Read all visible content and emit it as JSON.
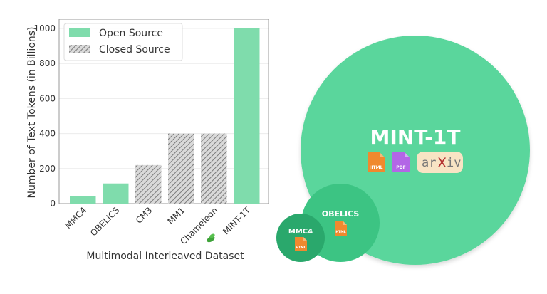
{
  "chart_data": [
    {
      "type": "bar",
      "title": "",
      "xlabel": "Multimodal Interleaved Dataset",
      "ylabel": "Number of Text Tokens (in Billions)",
      "ylim": [
        0,
        1000
      ],
      "yticks": [
        0,
        200,
        400,
        600,
        800,
        1000
      ],
      "grid": true,
      "legend_position": "upper left",
      "categories": [
        "MMC4",
        "OBELICS",
        "CM3",
        "MM1",
        "Chameleon",
        "MINT-1T"
      ],
      "values": [
        43,
        115,
        220,
        400,
        400,
        1000
      ],
      "source_type": [
        "Open Source",
        "Open Source",
        "Closed Source",
        "Closed Source",
        "Closed Source",
        "Open Source"
      ],
      "legend": [
        {
          "label": "Open Source",
          "style": "solid",
          "color": "#7fdcac"
        },
        {
          "label": "Closed Source",
          "style": "hatched",
          "color": "#999999"
        }
      ],
      "annotations": [
        "leaf icon next to MINT-1T tick label"
      ]
    },
    {
      "type": "bubble",
      "title": "",
      "bubbles": [
        {
          "label": "MINT-1T",
          "relative_size": "largest",
          "sources": [
            "HTML",
            "PDF",
            "arXiv"
          ],
          "color": "#5ad69c"
        },
        {
          "label": "OBELICS",
          "relative_size": "medium",
          "sources": [
            "HTML"
          ],
          "color": "#3cc483"
        },
        {
          "label": "MMC4",
          "relative_size": "small",
          "sources": [
            "HTML"
          ],
          "color": "#2aa86c"
        }
      ]
    }
  ],
  "colors": {
    "open": "#7fdcac",
    "closed_hatch": "#8a8a8a",
    "mint_circle": "#5ad69c",
    "obelics_circle": "#3cc483",
    "mmc4_circle": "#2aa86c",
    "html_icon": "#f0892e",
    "pdf_icon": "#b366e6",
    "arxiv_bg": "#f8e4c4"
  },
  "labels": {
    "mint": "MINT-1T",
    "obelics": "OBELICS",
    "mmc4": "MMC4",
    "html": "HTML",
    "pdf": "PDF",
    "arxiv_a": "ar",
    "arxiv_x": "X",
    "arxiv_b": "iv"
  }
}
